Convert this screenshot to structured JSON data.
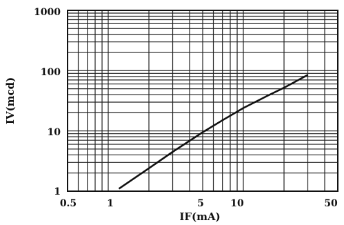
{
  "chart_data": {
    "type": "line",
    "title": "",
    "xlabel": "IF(mA)",
    "ylabel": "IV(mcd)",
    "x_scale": "log",
    "y_scale": "log",
    "xlim": [
      0.5,
      50
    ],
    "ylim": [
      1,
      1000
    ],
    "x_tick_labels": [
      "0.5",
      "1",
      "5",
      "10",
      "50"
    ],
    "y_tick_labels": [
      "1",
      "10",
      "100",
      "1000"
    ],
    "grid": true,
    "series": [
      {
        "color": "#111111",
        "x": [
          1.2,
          2,
          3,
          5,
          7,
          10,
          15,
          20,
          30
        ],
        "y": [
          1.1,
          2.4,
          4.5,
          9.5,
          15,
          24,
          38,
          52,
          85
        ]
      }
    ]
  }
}
